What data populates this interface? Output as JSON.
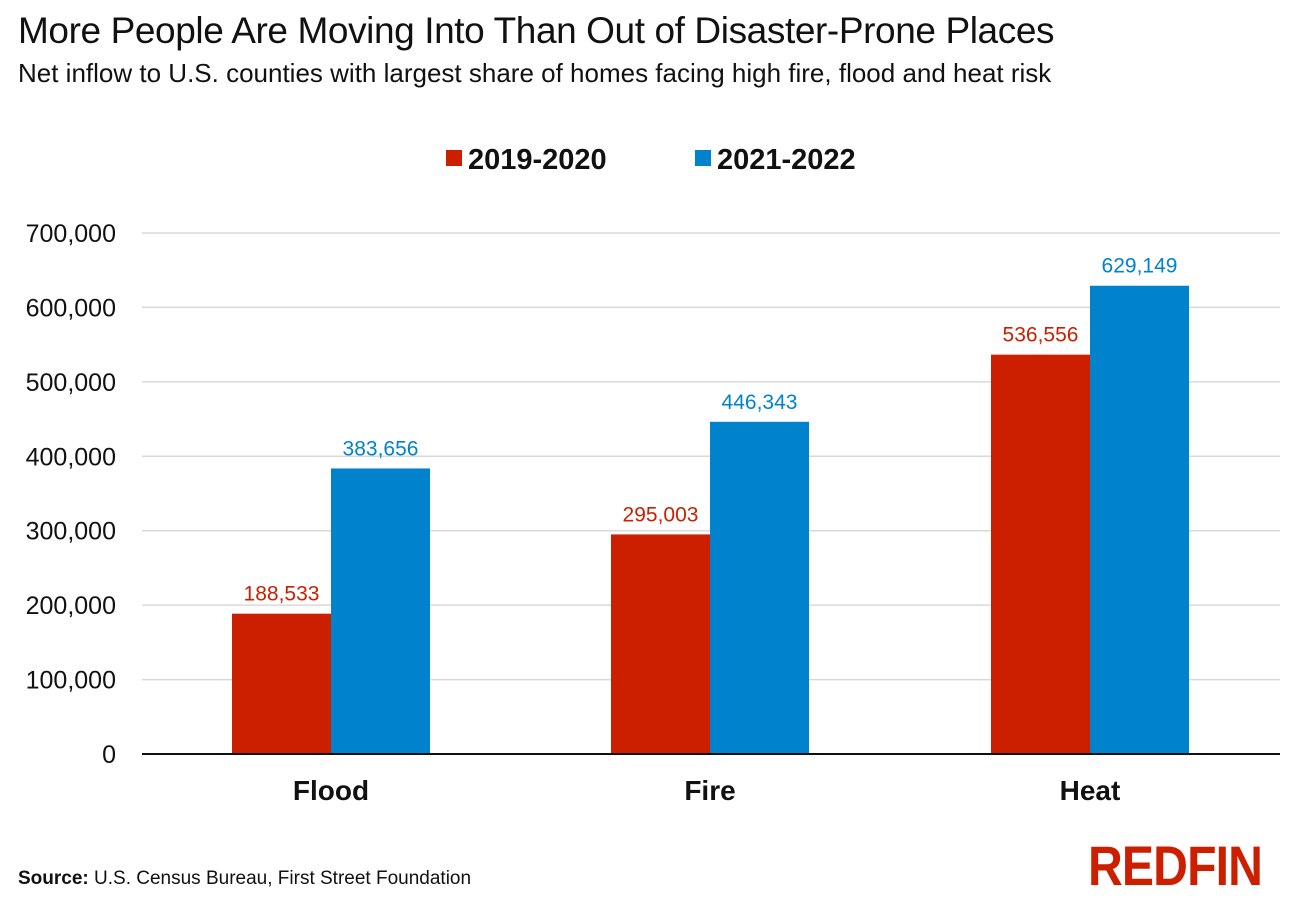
{
  "header": {
    "title": "More People Are Moving Into Than Out of Disaster-Prone Places",
    "subtitle": "Net inflow to U.S. counties with largest share of homes facing high fire, flood and heat risk"
  },
  "footer": {
    "source_label": "Source:",
    "source_text": "U.S. Census Bureau, First Street Foundation",
    "logo_text": "REDFIN"
  },
  "colors": {
    "series_2019_2020": "#cc1f00",
    "series_2021_2022": "#0083cc",
    "logo": "#cc1f00",
    "grid": "#d9d9d9",
    "axis": "#111111"
  },
  "chart_data": {
    "type": "bar",
    "categories": [
      "Flood",
      "Fire",
      "Heat"
    ],
    "series": [
      {
        "name": "2019-2020",
        "values": [
          188533,
          295003,
          536556
        ],
        "labels": [
          "188,533",
          "295,003",
          "536,556"
        ]
      },
      {
        "name": "2021-2022",
        "values": [
          383656,
          446343,
          629149
        ],
        "labels": [
          "383,656",
          "446,343",
          "629,149"
        ]
      }
    ],
    "y_ticks": [
      0,
      100000,
      200000,
      300000,
      400000,
      500000,
      600000,
      700000
    ],
    "y_tick_labels": [
      "0",
      "100,000",
      "200,000",
      "300,000",
      "400,000",
      "500,000",
      "600,000",
      "700,000"
    ],
    "ylim": [
      0,
      700000
    ],
    "grid": true,
    "legend_position": "top-center"
  }
}
